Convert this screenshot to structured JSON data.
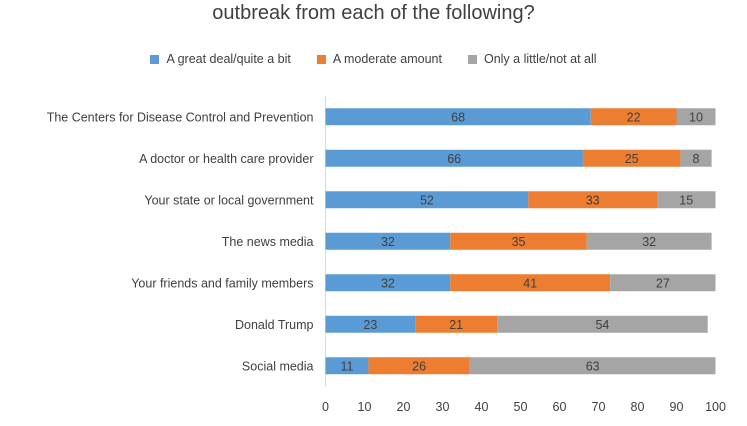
{
  "chart_data": {
    "type": "bar",
    "orientation": "horizontal",
    "stacked": true,
    "title_lines": [
      "outbreak from each of the following?"
    ],
    "categories": [
      "The Centers for Disease Control and Prevention",
      "A doctor or health care provider",
      "Your state or local government",
      "The news media",
      "Your friends and family members",
      "Donald Trump",
      "Social media"
    ],
    "series": [
      {
        "name": "A great deal/quite a bit",
        "color": "#5b9bd5",
        "values": [
          68,
          66,
          52,
          32,
          32,
          23,
          11
        ]
      },
      {
        "name": "A moderate amount",
        "color": "#ed7d31",
        "values": [
          22,
          25,
          33,
          35,
          41,
          21,
          26
        ]
      },
      {
        "name": "Only a little/not at all",
        "color": "#a5a5a5",
        "values": [
          10,
          8,
          15,
          32,
          27,
          54,
          63
        ]
      }
    ],
    "xlim": [
      0,
      100
    ],
    "xticks": [
      "0",
      "10",
      "20",
      "30",
      "40",
      "50",
      "60",
      "70",
      "80",
      "90",
      "100"
    ],
    "grid": false,
    "legend_position": "top"
  }
}
